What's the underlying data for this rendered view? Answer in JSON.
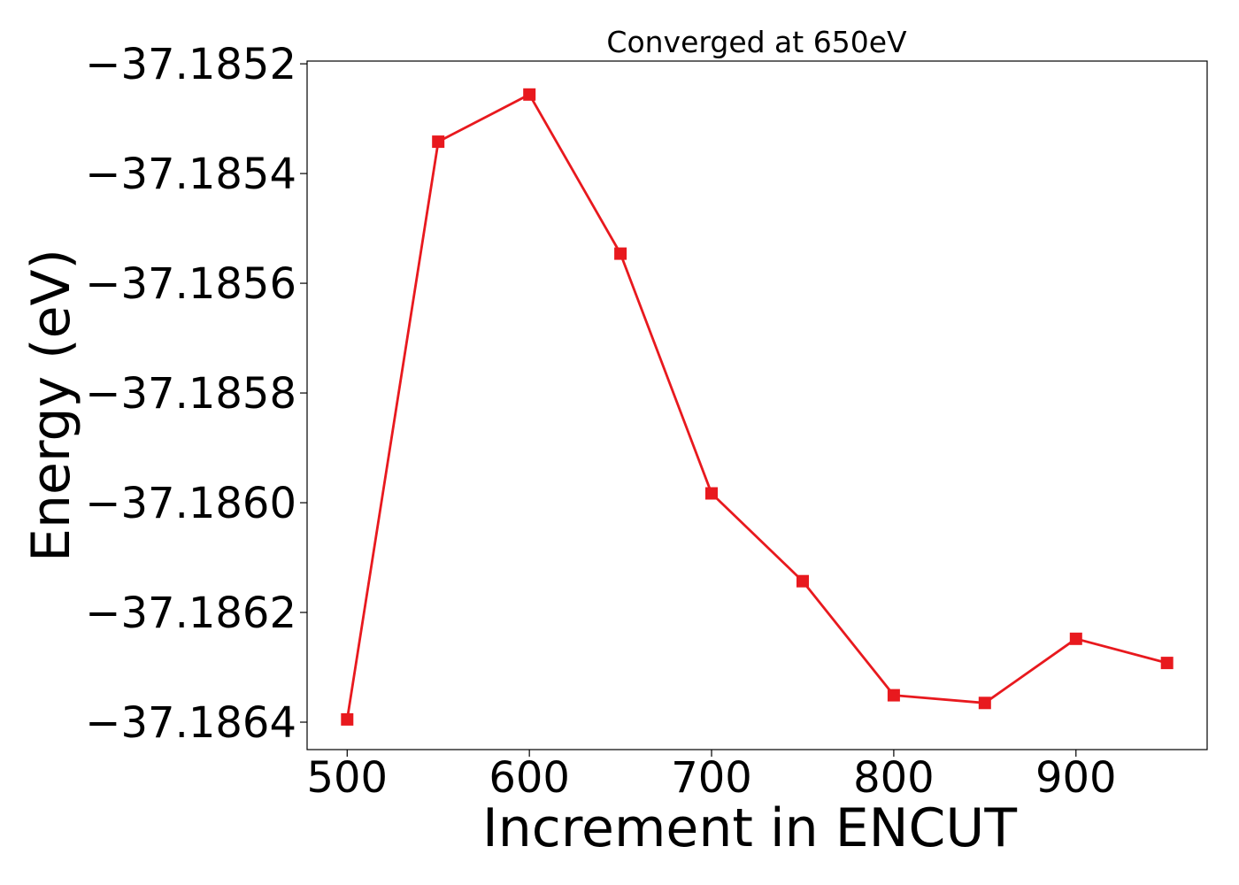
{
  "chart_data": {
    "type": "line",
    "title": "Converged at 650eV",
    "xlabel": "Increment in ENCUT",
    "ylabel": "Energy (eV)",
    "xlim": [
      478,
      972
    ],
    "ylim": [
      -37.18645,
      -37.185195
    ],
    "xticks": [
      500,
      600,
      700,
      800,
      900
    ],
    "xtick_labels": [
      "500",
      "600",
      "700",
      "800",
      "900"
    ],
    "yticks": [
      -37.1864,
      -37.1862,
      -37.186,
      -37.1858,
      -37.1856,
      -37.1854,
      -37.1852
    ],
    "ytick_labels": [
      "−37.1864",
      "−37.1862",
      "−37.1860",
      "−37.1858",
      "−37.1856",
      "−37.1854",
      "−37.1852"
    ],
    "grid": false,
    "legend": "none",
    "series": [
      {
        "color": "#e8191e",
        "marker": "square",
        "x": [
          500,
          550,
          600,
          650,
          700,
          750,
          800,
          850,
          900,
          950
        ],
        "y": [
          -37.186395,
          -37.185342,
          -37.185256,
          -37.185546,
          -37.185983,
          -37.186143,
          -37.186351,
          -37.186365,
          -37.186248,
          -37.186292
        ]
      }
    ]
  }
}
